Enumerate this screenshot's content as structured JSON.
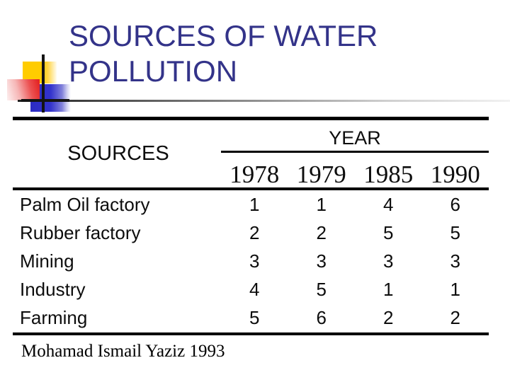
{
  "slide": {
    "title": "SOURCES OF WATER POLLUTION",
    "title_color": "#333389",
    "credit": "Mohamad Ismail Yaziz 1993"
  },
  "decoration": {
    "yellow_square_color": "#ffcc00",
    "red_square_color": "#e42525",
    "blue_square_color": "#3333cc",
    "cross_line_color": "#141414"
  },
  "table": {
    "row_header": "SOURCES",
    "column_group_header": "YEAR",
    "years": [
      "1978",
      "1979",
      "1985",
      "1990"
    ],
    "rows": [
      {
        "label": "Palm Oil factory",
        "values": [
          "1",
          "1",
          "4",
          "6"
        ]
      },
      {
        "label": "Rubber factory",
        "values": [
          "2",
          "2",
          "5",
          "5"
        ]
      },
      {
        "label": "Mining",
        "values": [
          "3",
          "3",
          "3",
          "3"
        ]
      },
      {
        "label": "Industry",
        "values": [
          "4",
          "5",
          "1",
          "1"
        ]
      },
      {
        "label": "Farming",
        "values": [
          "5",
          "6",
          "2",
          "2"
        ]
      }
    ]
  },
  "chart_data": {
    "type": "table",
    "title": "SOURCES OF WATER POLLUTION",
    "columns": [
      "SOURCES",
      "1978",
      "1979",
      "1985",
      "1990"
    ],
    "rows": [
      [
        "Palm Oil factory",
        1,
        1,
        4,
        6
      ],
      [
        "Rubber factory",
        2,
        2,
        5,
        5
      ],
      [
        "Mining",
        3,
        3,
        3,
        3
      ],
      [
        "Industry",
        4,
        5,
        1,
        1
      ],
      [
        "Farming",
        5,
        6,
        2,
        2
      ]
    ],
    "source_note": "Mohamad Ismail Yaziz 1993"
  }
}
